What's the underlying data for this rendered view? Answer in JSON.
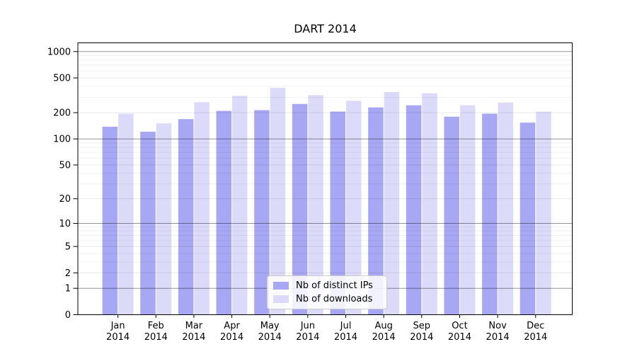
{
  "title": "DART 2014",
  "chart_data": {
    "type": "bar",
    "title": "DART 2014",
    "categories": [
      "Jan",
      "Feb",
      "Mar",
      "Apr",
      "May",
      "Jun",
      "Jul",
      "Aug",
      "Sep",
      "Oct",
      "Nov",
      "Dec"
    ],
    "year": "2014",
    "series": [
      {
        "name": "Nb of distinct IPs",
        "color": "#a7a7f3",
        "values": [
          138,
          121,
          169,
          210,
          214,
          252,
          206,
          230,
          243,
          180,
          195,
          154
        ]
      },
      {
        "name": "Nb of downloads",
        "color": "#dbdbf9",
        "values": [
          195,
          151,
          264,
          312,
          385,
          318,
          274,
          345,
          334,
          243,
          261,
          206
        ]
      }
    ],
    "yscale": "log1p",
    "ylim": [
      0,
      1280
    ],
    "yticks": [
      0,
      1,
      2,
      5,
      10,
      20,
      50,
      100,
      200,
      500,
      1000
    ],
    "minor_yticks": [
      3,
      4,
      6,
      7,
      8,
      9,
      30,
      40,
      60,
      70,
      80,
      90,
      300,
      400,
      600,
      700,
      800,
      900
    ],
    "emphasized_gridlines": [
      1,
      10,
      100,
      1000
    ],
    "grid": true,
    "legend_position": "bottom-center"
  }
}
